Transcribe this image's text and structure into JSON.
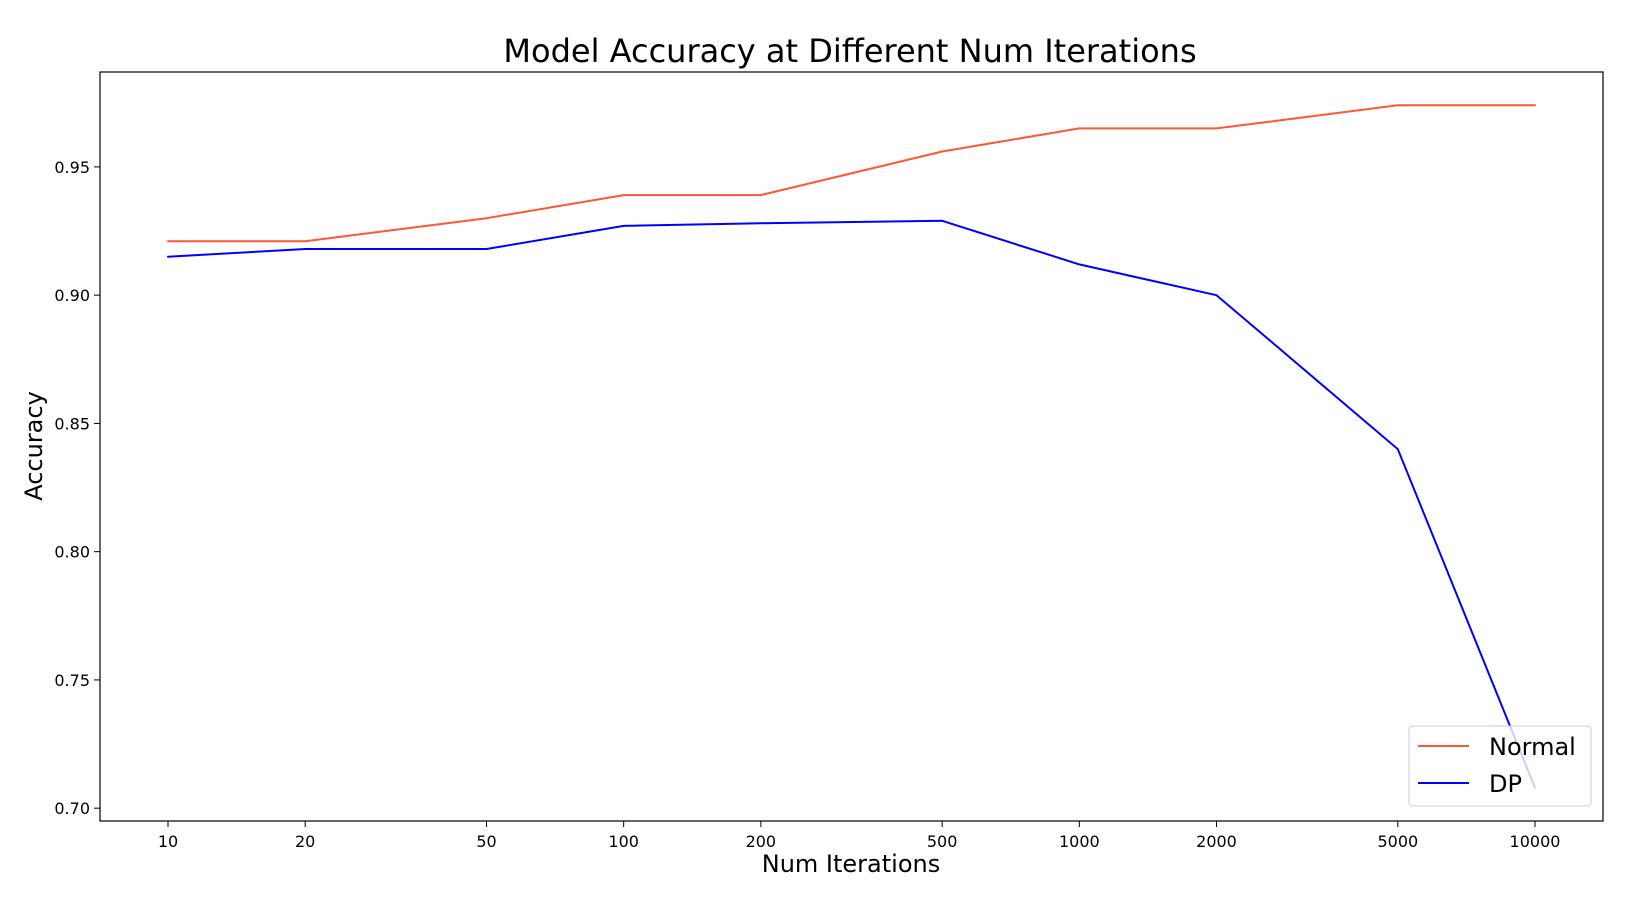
{
  "chart_data": {
    "type": "line",
    "title": "Model Accuracy at Different Num Iterations",
    "xlabel": "Num Iterations",
    "ylabel": "Accuracy",
    "xscale": "log",
    "x": [
      10,
      20,
      50,
      100,
      200,
      500,
      1000,
      2000,
      5000,
      10000
    ],
    "x_tick_labels": [
      "10",
      "20",
      "50",
      "100",
      "200",
      "500",
      "1000",
      "2000",
      "5000",
      "10000"
    ],
    "y_ticks": [
      0.7,
      0.75,
      0.8,
      0.85,
      0.9,
      0.95
    ],
    "y_tick_labels": [
      "0.70",
      "0.75",
      "0.80",
      "0.85",
      "0.90",
      "0.95"
    ],
    "ylim": [
      0.695,
      0.987
    ],
    "grid": false,
    "legend_position": "bottom-right",
    "series": [
      {
        "name": "Normal",
        "color": "#ff5733",
        "values": [
          0.921,
          0.921,
          0.93,
          0.939,
          0.939,
          0.956,
          0.965,
          0.965,
          0.974,
          0.974
        ]
      },
      {
        "name": "DP",
        "color": "#0000ff",
        "values": [
          0.915,
          0.918,
          0.918,
          0.927,
          0.928,
          0.929,
          0.912,
          0.9,
          0.84,
          0.708
        ]
      }
    ]
  }
}
